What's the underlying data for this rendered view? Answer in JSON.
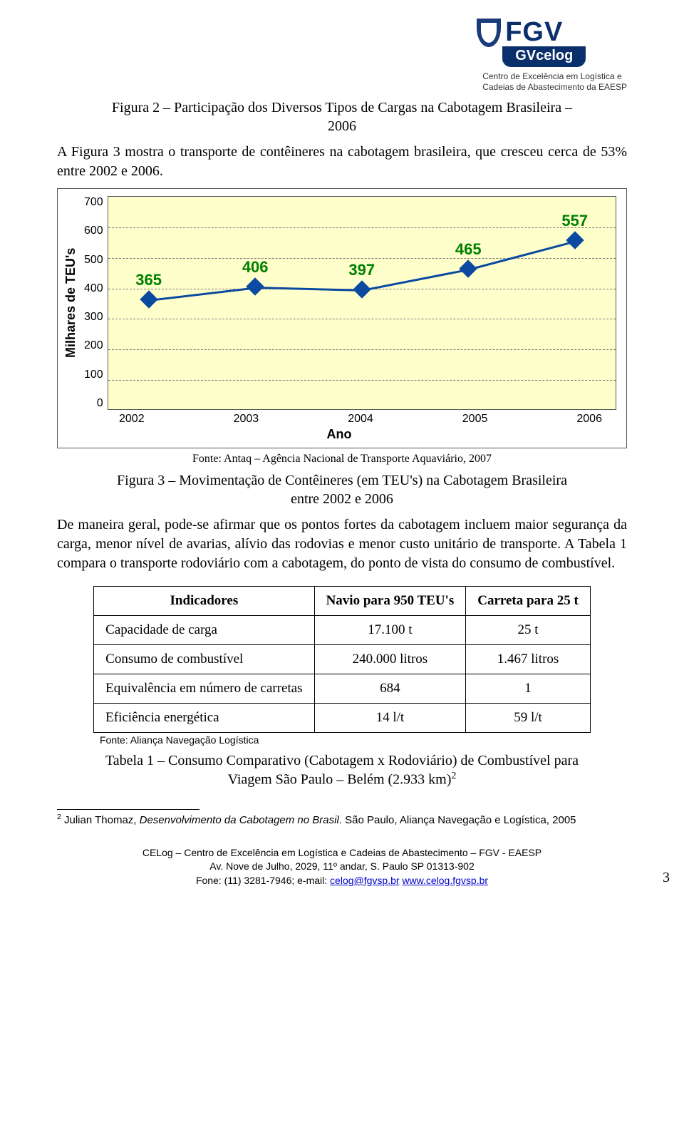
{
  "logo": {
    "main": "FGV",
    "pill": "GVcelog",
    "sub1": "Centro de Excelência em Logística e",
    "sub2": "Cadeias de Abastecimento da EAESP"
  },
  "fig2_caption_l1": "Figura 2 – Participação dos Diversos Tipos de Cargas na Cabotagem Brasileira –",
  "fig2_caption_l2": "2006",
  "para1": "A Figura 3 mostra o transporte de contêineres na cabotagem brasileira, que cresceu cerca de 53% entre 2002 e 2006.",
  "chart": {
    "type": "line",
    "ylabel": "Milhares de TEU's",
    "xlabel": "Ano",
    "years": [
      "2002",
      "2003",
      "2004",
      "2005",
      "2006"
    ],
    "values": [
      365,
      406,
      397,
      465,
      557
    ],
    "ylim": [
      0,
      700
    ],
    "ytick_step": 100,
    "yticks": [
      "700",
      "600",
      "500",
      "400",
      "300",
      "200",
      "100",
      "0"
    ],
    "plot_bg": "#FFFFCC",
    "grid_color": "#777777",
    "marker_color": "#0b4aa0",
    "label_color": "#008000",
    "label_fontsize": 22
  },
  "fonte_chart": "Fonte: Antaq – Agência Nacional de Transporte Aquaviário, 2007",
  "fig3_caption_l1": "Figura 3 – Movimentação de Contêineres (em TEU's) na Cabotagem Brasileira",
  "fig3_caption_l2": "entre 2002 e 2006",
  "para2": "De maneira geral, pode-se afirmar que os pontos fortes da cabotagem incluem maior segurança da carga, menor nível de avarias, alívio das rodovias e menor custo unitário de transporte. A Tabela 1 compara o transporte rodoviário com a cabotagem, do ponto de vista do consumo de combustível.",
  "table": {
    "headers": [
      "Indicadores",
      "Navio para 950 TEU's",
      "Carreta para 25 t"
    ],
    "rows": [
      [
        "Capacidade de carga",
        "17.100 t",
        "25 t"
      ],
      [
        "Consumo de combustível",
        "240.000 litros",
        "1.467 litros"
      ],
      [
        "Equivalência em número de carretas",
        "684",
        "1"
      ],
      [
        "Eficiência energética",
        "14 l/t",
        "59 l/t"
      ]
    ]
  },
  "fonte_table": "Fonte: Aliança Navegação Logística",
  "tab1_caption_l1": "Tabela 1 – Consumo Comparativo (Cabotagem x Rodoviário) de Combustível para",
  "tab1_caption_l2_pre": "Viagem São Paulo – Belém (2.933 km)",
  "tab1_caption_l2_sup": "2",
  "footnote_num": "2",
  "footnote_pre": " Julian Thomaz, ",
  "footnote_italic": "Desenvolvimento da Cabotagem no Brasil",
  "footnote_post": ". São Paulo, Aliança Navegação e Logística, 2005",
  "footer": {
    "l1": "CELog – Centro de Excelência em Logística e Cadeias de Abastecimento – FGV - EAESP",
    "l2": "Av. Nove de Julho, 2029, 11º andar,  S. Paulo  SP  01313-902",
    "l3_pre": "Fone: (11) 3281-7946; e-mail: ",
    "email": "celog@fgvsp.br",
    "spacer": "   ",
    "site": "www.celog.fgvsp.br",
    "page": "3"
  }
}
